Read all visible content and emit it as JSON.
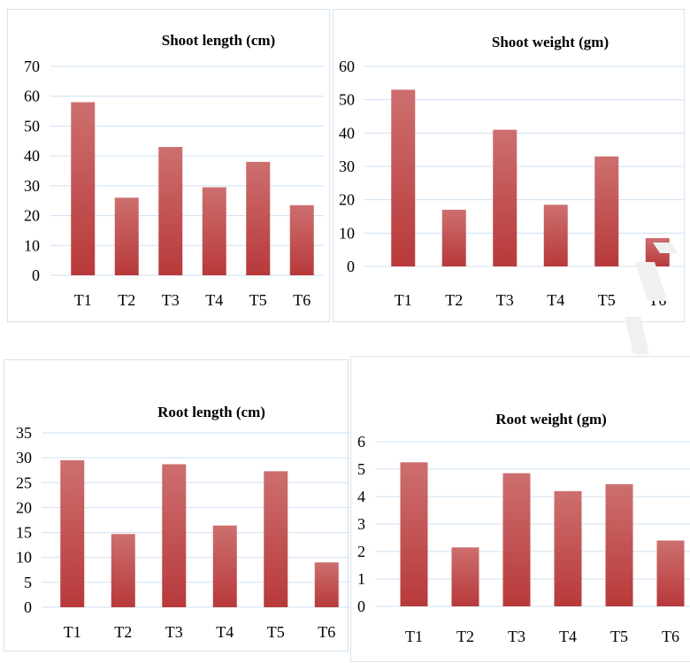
{
  "colors": {
    "bar_top": "#cd6f6f",
    "bar_bottom": "#b8393a",
    "grid": "#cfe0f2",
    "border": "#d6e3ef",
    "text": "#000000"
  },
  "chart_data": [
    {
      "type": "bar",
      "title": "Shoot length (cm)",
      "categories": [
        "T1",
        "T2",
        "T3",
        "T4",
        "T5",
        "T6"
      ],
      "values": [
        58,
        26,
        43,
        29.5,
        38,
        23.5
      ],
      "ylim": [
        0,
        70
      ],
      "yticks": [
        0,
        10,
        20,
        30,
        40,
        50,
        60,
        70
      ],
      "grid": true,
      "legend": "none"
    },
    {
      "type": "bar",
      "title": "Shoot weight (gm)",
      "categories": [
        "T1",
        "T2",
        "T3",
        "T4",
        "T5",
        "T6"
      ],
      "values": [
        53,
        17,
        41,
        18.5,
        33,
        8.5
      ],
      "ylim": [
        0,
        60
      ],
      "yticks": [
        0,
        10,
        20,
        30,
        40,
        50,
        60
      ],
      "grid": true,
      "legend": "none"
    },
    {
      "type": "bar",
      "title": "Root length (cm)",
      "categories": [
        "T1",
        "T2",
        "T3",
        "T4",
        "T5",
        "T6"
      ],
      "values": [
        29.5,
        14.7,
        28.7,
        16.4,
        27.3,
        9
      ],
      "ylim": [
        0,
        35
      ],
      "yticks": [
        0,
        5,
        10,
        15,
        20,
        25,
        30,
        35
      ],
      "grid": true,
      "legend": "none"
    },
    {
      "type": "bar",
      "title": "Root weight (gm)",
      "categories": [
        "T1",
        "T2",
        "T3",
        "T4",
        "T5",
        "T6"
      ],
      "values": [
        5.25,
        2.15,
        4.85,
        4.2,
        4.45,
        2.4
      ],
      "ylim": [
        0,
        6
      ],
      "yticks": [
        0,
        1,
        2,
        3,
        4,
        5,
        6
      ],
      "grid": true,
      "legend": "none"
    }
  ]
}
